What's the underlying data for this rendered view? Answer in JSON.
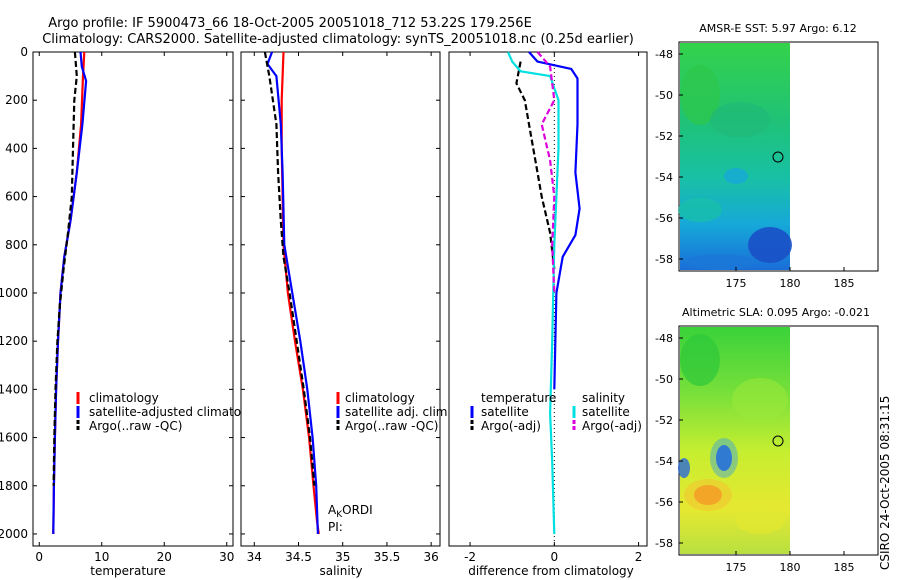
{
  "header": {
    "line1": "Argo profile: IF 5900473_66 18-Oct-2005 20051018_712 53.22S 179.256E",
    "line2": "Climatology: CARS2000. Satellite-adjusted climatology: synTS_20051018.nc (0.25d earlier)"
  },
  "footer_stamp": "CSIRO 24-Oct-2005 08:31:15",
  "chart_data": [
    {
      "id": "temperature",
      "type": "line",
      "xlabel": "temperature",
      "xlim": [
        -1,
        31
      ],
      "ylim": [
        0,
        2050
      ],
      "y_reversed": true,
      "xticks": [
        0,
        10,
        20,
        30
      ],
      "yticks": [
        0,
        200,
        400,
        600,
        800,
        1000,
        1200,
        1400,
        1600,
        1800,
        2000
      ],
      "legend": [
        "climatology",
        "satellite-adjusted climatology",
        "Argo(..raw -QC)"
      ],
      "series": [
        {
          "name": "climatology",
          "color": "#ff0000",
          "dash": "",
          "x": [
            7.2,
            7.0,
            6.7,
            6.0,
            5.0,
            4.0,
            3.4,
            3.0,
            2.7,
            2.5,
            2.35,
            2.25
          ],
          "y": [
            0,
            100,
            300,
            500,
            700,
            850,
            1000,
            1200,
            1400,
            1600,
            1800,
            2000
          ]
        },
        {
          "name": "satellite-adjusted climatology",
          "color": "#0000ff",
          "dash": "",
          "x": [
            6.6,
            6.8,
            7.5,
            6.9,
            6.0,
            5.0,
            4.0,
            3.4,
            3.0,
            2.7,
            2.5,
            2.35,
            2.25
          ],
          "y": [
            0,
            60,
            120,
            300,
            500,
            700,
            850,
            1000,
            1200,
            1400,
            1600,
            1800,
            2000
          ]
        },
        {
          "name": "Argo(..raw -QC)",
          "color": "#000000",
          "dash": "6,3",
          "x": [
            5.7,
            6.0,
            5.6,
            5.4,
            5.2,
            4.6,
            3.9,
            3.3,
            2.9,
            2.6,
            2.4,
            2.3
          ],
          "y": [
            0,
            100,
            200,
            400,
            600,
            750,
            900,
            1050,
            1200,
            1400,
            1600,
            1800
          ]
        }
      ]
    },
    {
      "id": "salinity",
      "type": "line",
      "xlabel": "salinity",
      "xlim": [
        33.85,
        36.1
      ],
      "ylim": [
        0,
        2050
      ],
      "y_reversed": true,
      "xticks": [
        34,
        34.5,
        35,
        35.5,
        36
      ],
      "xtick_labels": [
        "34",
        "34.5",
        "35",
        "35.5",
        "36"
      ],
      "yticks": [
        0,
        200,
        400,
        600,
        800,
        1000,
        1200,
        1400,
        1600,
        1800,
        2000
      ],
      "legend": [
        "climatology",
        "satellite adj. clim.",
        "Argo(..raw -QC)"
      ],
      "annotation_line1": "A",
      "annotation_sub": "K",
      "annotation_rest": "ORDI",
      "annotation_line2": "PI:",
      "series": [
        {
          "name": "climatology",
          "color": "#ff0000",
          "dash": "",
          "x": [
            34.33,
            34.31,
            34.31,
            34.32,
            34.33,
            34.38,
            34.46,
            34.55,
            34.62,
            34.67,
            34.71,
            34.73
          ],
          "y": [
            0,
            200,
            400,
            600,
            800,
            1000,
            1200,
            1400,
            1600,
            1800,
            1950,
            2000
          ]
        },
        {
          "name": "satellite adj. clim.",
          "color": "#0000ff",
          "dash": "",
          "x": [
            34.2,
            34.15,
            34.25,
            34.3,
            34.32,
            34.34,
            34.43,
            34.52,
            34.6,
            34.66,
            34.7,
            34.72
          ],
          "y": [
            0,
            50,
            100,
            300,
            500,
            800,
            1000,
            1200,
            1400,
            1600,
            1800,
            2000
          ]
        },
        {
          "name": "Argo(..raw -QC)",
          "color": "#000000",
          "dash": "6,3",
          "x": [
            34.12,
            34.17,
            34.19,
            34.25,
            34.27,
            34.3,
            34.33,
            34.4,
            34.48,
            34.56,
            34.63,
            34.68
          ],
          "y": [
            0,
            100,
            150,
            300,
            500,
            700,
            850,
            1000,
            1200,
            1400,
            1600,
            1800
          ]
        }
      ]
    },
    {
      "id": "difference",
      "type": "line",
      "xlabel": "difference from climatology",
      "xlim": [
        -2.5,
        2.2
      ],
      "ylim": [
        0,
        2050
      ],
      "y_reversed": true,
      "xticks": [
        -2,
        0,
        2
      ],
      "yticks": [
        0,
        200,
        400,
        600,
        800,
        1000,
        1200,
        1400,
        1600,
        1800,
        2000
      ],
      "legend_left_title": "temperature",
      "legend_right_title": "salinity",
      "legend_left": [
        "satellite",
        "Argo(-adj)"
      ],
      "legend_right": [
        "satellite",
        "Argo(-adj)"
      ],
      "series": [
        {
          "name": "temperature satellite",
          "color": "#0000ff",
          "dash": "",
          "x": [
            -0.6,
            -0.4,
            0.4,
            0.55,
            0.55,
            0.5,
            0.6,
            0.5,
            0.2,
            0.05,
            0.0
          ],
          "y": [
            0,
            40,
            70,
            110,
            300,
            500,
            650,
            760,
            850,
            1000,
            1400
          ]
        },
        {
          "name": "temperature Argo(-adj)",
          "color": "#000000",
          "dash": "6,3",
          "x": [
            -0.8,
            -0.9,
            -0.7,
            -0.55,
            -0.4,
            -0.3,
            -0.1,
            0.0
          ],
          "y": [
            40,
            130,
            200,
            350,
            500,
            600,
            750,
            900
          ]
        },
        {
          "name": "salinity satellite",
          "color": "#00e0e0",
          "dash": "",
          "x": [
            -1.1,
            -1.0,
            -0.8,
            -0.1,
            0.1,
            0.1,
            0.0,
            -0.05,
            -0.1,
            -0.05,
            0.0
          ],
          "y": [
            0,
            40,
            80,
            100,
            200,
            400,
            800,
            1200,
            1500,
            1700,
            2000
          ]
        },
        {
          "name": "salinity Argo(-adj)",
          "color": "#dd00dd",
          "dash": "6,3",
          "x": [
            -0.4,
            -0.1,
            0.0,
            -0.3,
            -0.1,
            0.0,
            -0.05,
            0.0
          ],
          "y": [
            0,
            60,
            200,
            300,
            450,
            600,
            800,
            1000
          ]
        }
      ]
    }
  ],
  "maps": [
    {
      "id": "sst",
      "title": "AMSR-E SST: 5.97 Argo: 6.12",
      "xticks": [
        "175",
        "180",
        "185"
      ],
      "yticks": [
        "-48",
        "-50",
        "-52",
        "-54",
        "-56",
        "-58"
      ]
    },
    {
      "id": "sla",
      "title": "Altimetric SLA: 0.095 Argo: -0.021",
      "xticks": [
        "175",
        "180",
        "185"
      ],
      "yticks": [
        "-48",
        "-50",
        "-52",
        "-54",
        "-56",
        "-58"
      ]
    }
  ]
}
